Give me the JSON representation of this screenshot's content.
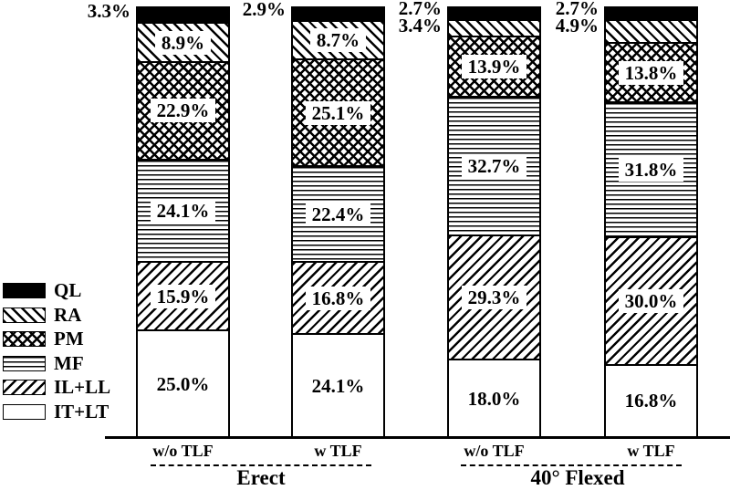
{
  "chart_data": {
    "type": "bar",
    "stacked": true,
    "value_unit": "%",
    "ylim": [
      0,
      100
    ],
    "grid": false,
    "legend_position": "left",
    "series_order_top_to_bottom": [
      "QL",
      "RA",
      "PM",
      "MF",
      "IL+LL",
      "IT+LT"
    ],
    "legend": [
      {
        "label": "QL",
        "pattern": "solid-black"
      },
      {
        "label": "RA",
        "pattern": "backslash-hatch"
      },
      {
        "label": "PM",
        "pattern": "crosshatch"
      },
      {
        "label": "MF",
        "pattern": "horizontal-lines"
      },
      {
        "label": "IL+LL",
        "pattern": "slash-hatch"
      },
      {
        "label": "IT+LT",
        "pattern": "white"
      }
    ],
    "groups": [
      {
        "label": "Erect"
      },
      {
        "label": "40° Flexed"
      }
    ],
    "bars": [
      {
        "group": "Erect",
        "condition": "w/o TLF",
        "outside_labels": [
          "3.3%"
        ],
        "segments": [
          {
            "muscle": "QL",
            "value": 3.3
          },
          {
            "muscle": "RA",
            "value": 8.9,
            "label": "8.9%"
          },
          {
            "muscle": "PM",
            "value": 22.9,
            "label": "22.9%"
          },
          {
            "muscle": "MF",
            "value": 24.1,
            "label": "24.1%"
          },
          {
            "muscle": "IL+LL",
            "value": 15.9,
            "label": "15.9%"
          },
          {
            "muscle": "IT+LT",
            "value": 25.0,
            "label": "25.0%"
          }
        ]
      },
      {
        "group": "Erect",
        "condition": "w TLF",
        "outside_labels": [
          "2.9%"
        ],
        "segments": [
          {
            "muscle": "QL",
            "value": 2.9
          },
          {
            "muscle": "RA",
            "value": 8.7,
            "label": "8.7%"
          },
          {
            "muscle": "PM",
            "value": 25.1,
            "label": "25.1%"
          },
          {
            "muscle": "MF",
            "value": 22.4,
            "label": "22.4%"
          },
          {
            "muscle": "IL+LL",
            "value": 16.8,
            "label": "16.8%"
          },
          {
            "muscle": "IT+LT",
            "value": 24.1,
            "label": "24.1%"
          }
        ]
      },
      {
        "group": "40° Flexed",
        "condition": "w/o TLF",
        "outside_labels": [
          "2.7%",
          "3.4%"
        ],
        "segments": [
          {
            "muscle": "QL",
            "value": 2.7
          },
          {
            "muscle": "RA",
            "value": 3.4
          },
          {
            "muscle": "PM",
            "value": 13.9,
            "label": "13.9%"
          },
          {
            "muscle": "MF",
            "value": 32.7,
            "label": "32.7%"
          },
          {
            "muscle": "IL+LL",
            "value": 29.3,
            "label": "29.3%"
          },
          {
            "muscle": "IT+LT",
            "value": 18.0,
            "label": "18.0%"
          }
        ]
      },
      {
        "group": "40° Flexed",
        "condition": "w TLF",
        "outside_labels": [
          "2.7%",
          "4.9%"
        ],
        "segments": [
          {
            "muscle": "QL",
            "value": 2.7
          },
          {
            "muscle": "RA",
            "value": 4.9
          },
          {
            "muscle": "PM",
            "value": 13.8,
            "label": "13.8%"
          },
          {
            "muscle": "MF",
            "value": 31.8,
            "label": "31.8%"
          },
          {
            "muscle": "IL+LL",
            "value": 30.0,
            "label": "30.0%"
          },
          {
            "muscle": "IT+LT",
            "value": 16.8,
            "label": "16.8%"
          }
        ]
      }
    ],
    "colors": {
      "ink": "#000000",
      "background": "#ffffff"
    }
  }
}
